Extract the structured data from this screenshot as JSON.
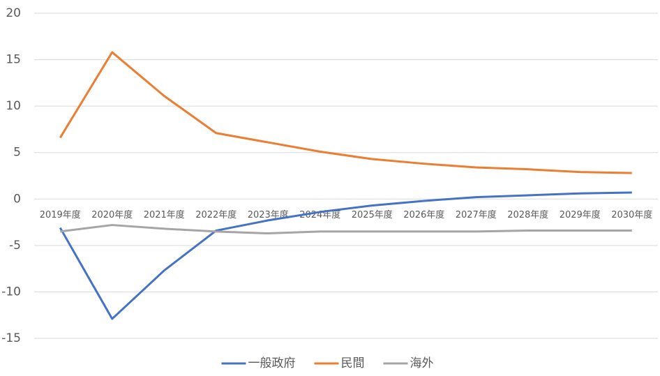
{
  "chart_data": {
    "type": "line",
    "categories": [
      "2019年度",
      "2020年度",
      "2021年度",
      "2022年度",
      "2023年度",
      "2024年度",
      "2025年度",
      "2026年度",
      "2027年度",
      "2028年度",
      "2029年度",
      "2030年度"
    ],
    "series": [
      {
        "name": "一般政府",
        "color": "#4472c4",
        "values": [
          -3.1,
          -12.9,
          -7.7,
          -3.4,
          -2.3,
          -1.4,
          -0.7,
          -0.2,
          0.2,
          0.4,
          0.6,
          0.7
        ]
      },
      {
        "name": "民間",
        "color": "#ed7d31",
        "values": [
          6.6,
          15.8,
          11.1,
          7.1,
          6.1,
          5.1,
          4.3,
          3.8,
          3.4,
          3.2,
          2.9,
          2.8
        ]
      },
      {
        "name": "海外",
        "color": "#a5a5a5",
        "values": [
          -3.5,
          -2.8,
          -3.2,
          -3.5,
          -3.7,
          -3.5,
          -3.5,
          -3.5,
          -3.5,
          -3.4,
          -3.4,
          -3.4
        ]
      }
    ],
    "ylim": [
      -15,
      20
    ],
    "yticks": [
      -15,
      -10,
      -5,
      0,
      5,
      10,
      15,
      20
    ],
    "grid": true,
    "legend": "bottom"
  }
}
